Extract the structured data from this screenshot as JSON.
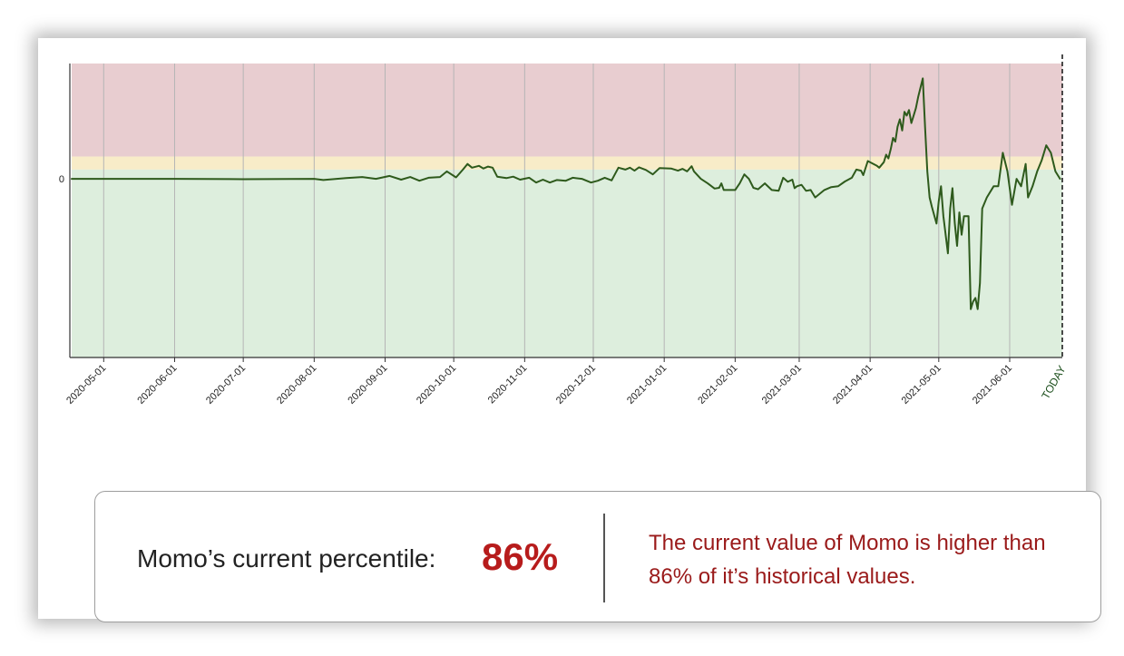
{
  "colors": {
    "zone_high": "#e8cdd0",
    "zone_mid": "#f8ecc8",
    "zone_low": "#ddeedd",
    "line": "#2e5a1c",
    "line_warn": "#4a3a05",
    "grid": "#b5b5b5",
    "accent": "#b71c1c",
    "desc": "#9a1a1a"
  },
  "chart_data": {
    "type": "line",
    "title": "",
    "xlabel": "",
    "ylabel": "",
    "ylim": [
      -0.48,
      0.31
    ],
    "y_ticks": [
      {
        "value": 0,
        "label": "0"
      }
    ],
    "x_domain": [
      "2020-04-17",
      "2021-06-24"
    ],
    "x_ticks": [
      {
        "date": "2020-05-01",
        "label": "2020-05-01"
      },
      {
        "date": "2020-06-01",
        "label": "2020-06-01"
      },
      {
        "date": "2020-07-01",
        "label": "2020-07-01"
      },
      {
        "date": "2020-08-01",
        "label": "2020-08-01"
      },
      {
        "date": "2020-09-01",
        "label": "2020-09-01"
      },
      {
        "date": "2020-10-01",
        "label": "2020-10-01"
      },
      {
        "date": "2020-11-01",
        "label": "2020-11-01"
      },
      {
        "date": "2020-12-01",
        "label": "2020-12-01"
      },
      {
        "date": "2021-01-01",
        "label": "2021-01-01"
      },
      {
        "date": "2021-02-01",
        "label": "2021-02-01"
      },
      {
        "date": "2021-03-01",
        "label": "2021-03-01"
      },
      {
        "date": "2021-04-01",
        "label": "2021-04-01"
      },
      {
        "date": "2021-05-01",
        "label": "2021-05-01"
      },
      {
        "date": "2021-06-01",
        "label": "2021-06-01"
      }
    ],
    "today": {
      "date": "2021-06-24",
      "label": "TODAY"
    },
    "zones": [
      {
        "name": "high",
        "from": 0.06,
        "to": 0.31
      },
      {
        "name": "mid",
        "from": 0.025,
        "to": 0.06
      },
      {
        "name": "low",
        "from": -0.48,
        "to": 0.025
      }
    ],
    "series": [
      {
        "name": "Momo",
        "points": [
          [
            "2020-04-17",
            0.0
          ],
          [
            "2020-05-05",
            0.0
          ],
          [
            "2020-06-01",
            0.0
          ],
          [
            "2020-07-01",
            -0.001
          ],
          [
            "2020-08-01",
            0.0
          ],
          [
            "2020-08-05",
            -0.003
          ],
          [
            "2020-08-15",
            0.002
          ],
          [
            "2020-08-22",
            0.005
          ],
          [
            "2020-08-28",
            0.0
          ],
          [
            "2020-09-03",
            0.008
          ],
          [
            "2020-09-08",
            -0.002
          ],
          [
            "2020-09-12",
            0.005
          ],
          [
            "2020-09-16",
            -0.005
          ],
          [
            "2020-09-20",
            0.003
          ],
          [
            "2020-09-25",
            0.005
          ],
          [
            "2020-09-28",
            0.02
          ],
          [
            "2020-10-02",
            0.004
          ],
          [
            "2020-10-05",
            0.025
          ],
          [
            "2020-10-07",
            0.04
          ],
          [
            "2020-10-09",
            0.03
          ],
          [
            "2020-10-12",
            0.035
          ],
          [
            "2020-10-14",
            0.028
          ],
          [
            "2020-10-16",
            0.033
          ],
          [
            "2020-10-18",
            0.03
          ],
          [
            "2020-10-20",
            0.006
          ],
          [
            "2020-10-24",
            0.002
          ],
          [
            "2020-10-27",
            0.006
          ],
          [
            "2020-10-30",
            -0.002
          ],
          [
            "2020-11-03",
            0.003
          ],
          [
            "2020-11-06",
            -0.01
          ],
          [
            "2020-11-09",
            -0.002
          ],
          [
            "2020-11-12",
            -0.01
          ],
          [
            "2020-11-15",
            -0.003
          ],
          [
            "2020-11-19",
            -0.005
          ],
          [
            "2020-11-22",
            0.003
          ],
          [
            "2020-11-26",
            0.0
          ],
          [
            "2020-11-30",
            -0.01
          ],
          [
            "2020-12-03",
            -0.005
          ],
          [
            "2020-12-06",
            0.003
          ],
          [
            "2020-12-09",
            -0.004
          ],
          [
            "2020-12-12",
            0.03
          ],
          [
            "2020-12-15",
            0.025
          ],
          [
            "2020-12-17",
            0.03
          ],
          [
            "2020-12-19",
            0.022
          ],
          [
            "2020-12-21",
            0.031
          ],
          [
            "2020-12-24",
            0.024
          ],
          [
            "2020-12-27",
            0.012
          ],
          [
            "2020-12-30",
            0.029
          ],
          [
            "2021-01-04",
            0.028
          ],
          [
            "2021-01-07",
            0.022
          ],
          [
            "2021-01-09",
            0.027
          ],
          [
            "2021-01-11",
            0.02
          ],
          [
            "2021-01-13",
            0.034
          ],
          [
            "2021-01-14",
            0.02
          ],
          [
            "2021-01-17",
            0.0
          ],
          [
            "2021-01-20",
            -0.012
          ],
          [
            "2021-01-23",
            -0.026
          ],
          [
            "2021-01-25",
            -0.024
          ],
          [
            "2021-01-26",
            -0.012
          ],
          [
            "2021-01-27",
            -0.03
          ],
          [
            "2021-02-01",
            -0.03
          ],
          [
            "2021-02-03",
            -0.012
          ],
          [
            "2021-02-05",
            0.012
          ],
          [
            "2021-02-07",
            0.0
          ],
          [
            "2021-02-09",
            -0.024
          ],
          [
            "2021-02-11",
            -0.028
          ],
          [
            "2021-02-14",
            -0.012
          ],
          [
            "2021-02-17",
            -0.03
          ],
          [
            "2021-02-20",
            -0.032
          ],
          [
            "2021-02-22",
            0.003
          ],
          [
            "2021-02-24",
            -0.008
          ],
          [
            "2021-02-26",
            -0.002
          ],
          [
            "2021-02-27",
            -0.025
          ],
          [
            "2021-02-28",
            -0.02
          ],
          [
            "2021-03-02",
            -0.016
          ],
          [
            "2021-03-04",
            -0.032
          ],
          [
            "2021-03-06",
            -0.03
          ],
          [
            "2021-03-08",
            -0.05
          ],
          [
            "2021-03-12",
            -0.03
          ],
          [
            "2021-03-15",
            -0.022
          ],
          [
            "2021-03-18",
            -0.02
          ],
          [
            "2021-03-21",
            -0.007
          ],
          [
            "2021-03-24",
            0.003
          ],
          [
            "2021-03-26",
            0.025
          ],
          [
            "2021-03-28",
            0.022
          ],
          [
            "2021-03-29",
            0.01
          ],
          [
            "2021-03-31",
            0.048
          ],
          [
            "2021-04-04",
            0.035
          ],
          [
            "2021-04-05",
            0.03
          ],
          [
            "2021-04-07",
            0.045
          ],
          [
            "2021-04-08",
            0.065
          ],
          [
            "2021-04-09",
            0.055
          ],
          [
            "2021-04-10",
            0.08
          ],
          [
            "2021-04-11",
            0.11
          ],
          [
            "2021-04-12",
            0.1
          ],
          [
            "2021-04-13",
            0.14
          ],
          [
            "2021-04-14",
            0.16
          ],
          [
            "2021-04-15",
            0.13
          ],
          [
            "2021-04-16",
            0.18
          ],
          [
            "2021-04-17",
            0.17
          ],
          [
            "2021-04-18",
            0.185
          ],
          [
            "2021-04-19",
            0.15
          ],
          [
            "2021-04-20",
            0.17
          ],
          [
            "2021-04-21",
            0.19
          ],
          [
            "2021-04-22",
            0.22
          ],
          [
            "2021-04-24",
            0.27
          ],
          [
            "2021-04-25",
            0.14
          ],
          [
            "2021-04-26",
            0.02
          ],
          [
            "2021-04-27",
            -0.05
          ],
          [
            "2021-04-28",
            -0.075
          ],
          [
            "2021-04-30",
            -0.12
          ],
          [
            "2021-05-01",
            -0.06
          ],
          [
            "2021-05-02",
            -0.02
          ],
          [
            "2021-05-03",
            -0.1
          ],
          [
            "2021-05-04",
            -0.15
          ],
          [
            "2021-05-05",
            -0.2
          ],
          [
            "2021-05-06",
            -0.08
          ],
          [
            "2021-05-07",
            -0.025
          ],
          [
            "2021-05-08",
            -0.12
          ],
          [
            "2021-05-09",
            -0.18
          ],
          [
            "2021-05-10",
            -0.09
          ],
          [
            "2021-05-11",
            -0.15
          ],
          [
            "2021-05-12",
            -0.1
          ],
          [
            "2021-05-14",
            -0.1
          ],
          [
            "2021-05-15",
            -0.35
          ],
          [
            "2021-05-16",
            -0.33
          ],
          [
            "2021-05-17",
            -0.32
          ],
          [
            "2021-05-18",
            -0.35
          ],
          [
            "2021-05-19",
            -0.28
          ],
          [
            "2021-05-20",
            -0.08
          ],
          [
            "2021-05-22",
            -0.05
          ],
          [
            "2021-05-25",
            -0.02
          ],
          [
            "2021-05-27",
            -0.02
          ],
          [
            "2021-05-29",
            0.07
          ],
          [
            "2021-05-31",
            0.02
          ],
          [
            "2021-06-02",
            -0.07
          ],
          [
            "2021-06-04",
            0.0
          ],
          [
            "2021-06-06",
            -0.02
          ],
          [
            "2021-06-08",
            0.04
          ],
          [
            "2021-06-09",
            -0.05
          ],
          [
            "2021-06-11",
            -0.02
          ],
          [
            "2021-06-13",
            0.02
          ],
          [
            "2021-06-15",
            0.05
          ],
          [
            "2021-06-17",
            0.09
          ],
          [
            "2021-06-19",
            0.07
          ],
          [
            "2021-06-21",
            0.02
          ],
          [
            "2021-06-23",
            0.0
          ]
        ]
      }
    ]
  },
  "summary": {
    "label": "Momo’s current percentile:",
    "value": "86%",
    "description": "The current value of Momo is higher than 86% of it’s historical values."
  }
}
